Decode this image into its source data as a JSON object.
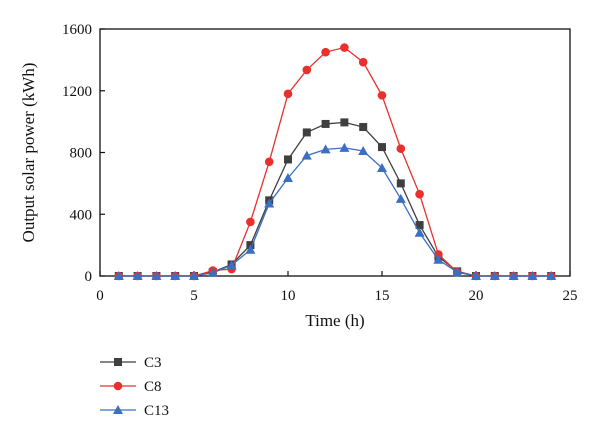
{
  "chart_data": {
    "type": "line",
    "title": "",
    "xlabel": "Time (h)",
    "ylabel": "Output solar power (kWh)",
    "xlim": [
      0,
      25
    ],
    "ylim": [
      0,
      1600
    ],
    "xticks": [
      0,
      5,
      10,
      15,
      20,
      25
    ],
    "yticks": [
      0,
      400,
      800,
      1200,
      1600
    ],
    "grid": false,
    "legend_position": "bottom-left, below plot",
    "x": [
      1,
      2,
      3,
      4,
      5,
      6,
      7,
      8,
      9,
      10,
      11,
      12,
      13,
      14,
      15,
      16,
      17,
      18,
      19,
      20,
      21,
      22,
      23,
      24
    ],
    "series": [
      {
        "name": "C3",
        "color": "#3f3f3f",
        "marker": "square",
        "values": [
          0,
          0,
          0,
          0,
          0,
          25,
          75,
          200,
          490,
          755,
          930,
          985,
          995,
          965,
          835,
          600,
          330,
          125,
          30,
          0,
          0,
          0,
          0,
          0
        ]
      },
      {
        "name": "C8",
        "color": "#e8302d",
        "marker": "circle",
        "values": [
          0,
          0,
          0,
          0,
          0,
          35,
          45,
          350,
          740,
          1180,
          1335,
          1450,
          1480,
          1385,
          1170,
          825,
          530,
          140,
          25,
          0,
          0,
          0,
          0,
          0
        ]
      },
      {
        "name": "C13",
        "color": "#3a6fc2",
        "marker": "triangle",
        "values": [
          0,
          0,
          0,
          0,
          0,
          20,
          70,
          170,
          470,
          635,
          780,
          820,
          830,
          810,
          700,
          500,
          280,
          105,
          25,
          0,
          0,
          0,
          0,
          0
        ]
      }
    ]
  }
}
